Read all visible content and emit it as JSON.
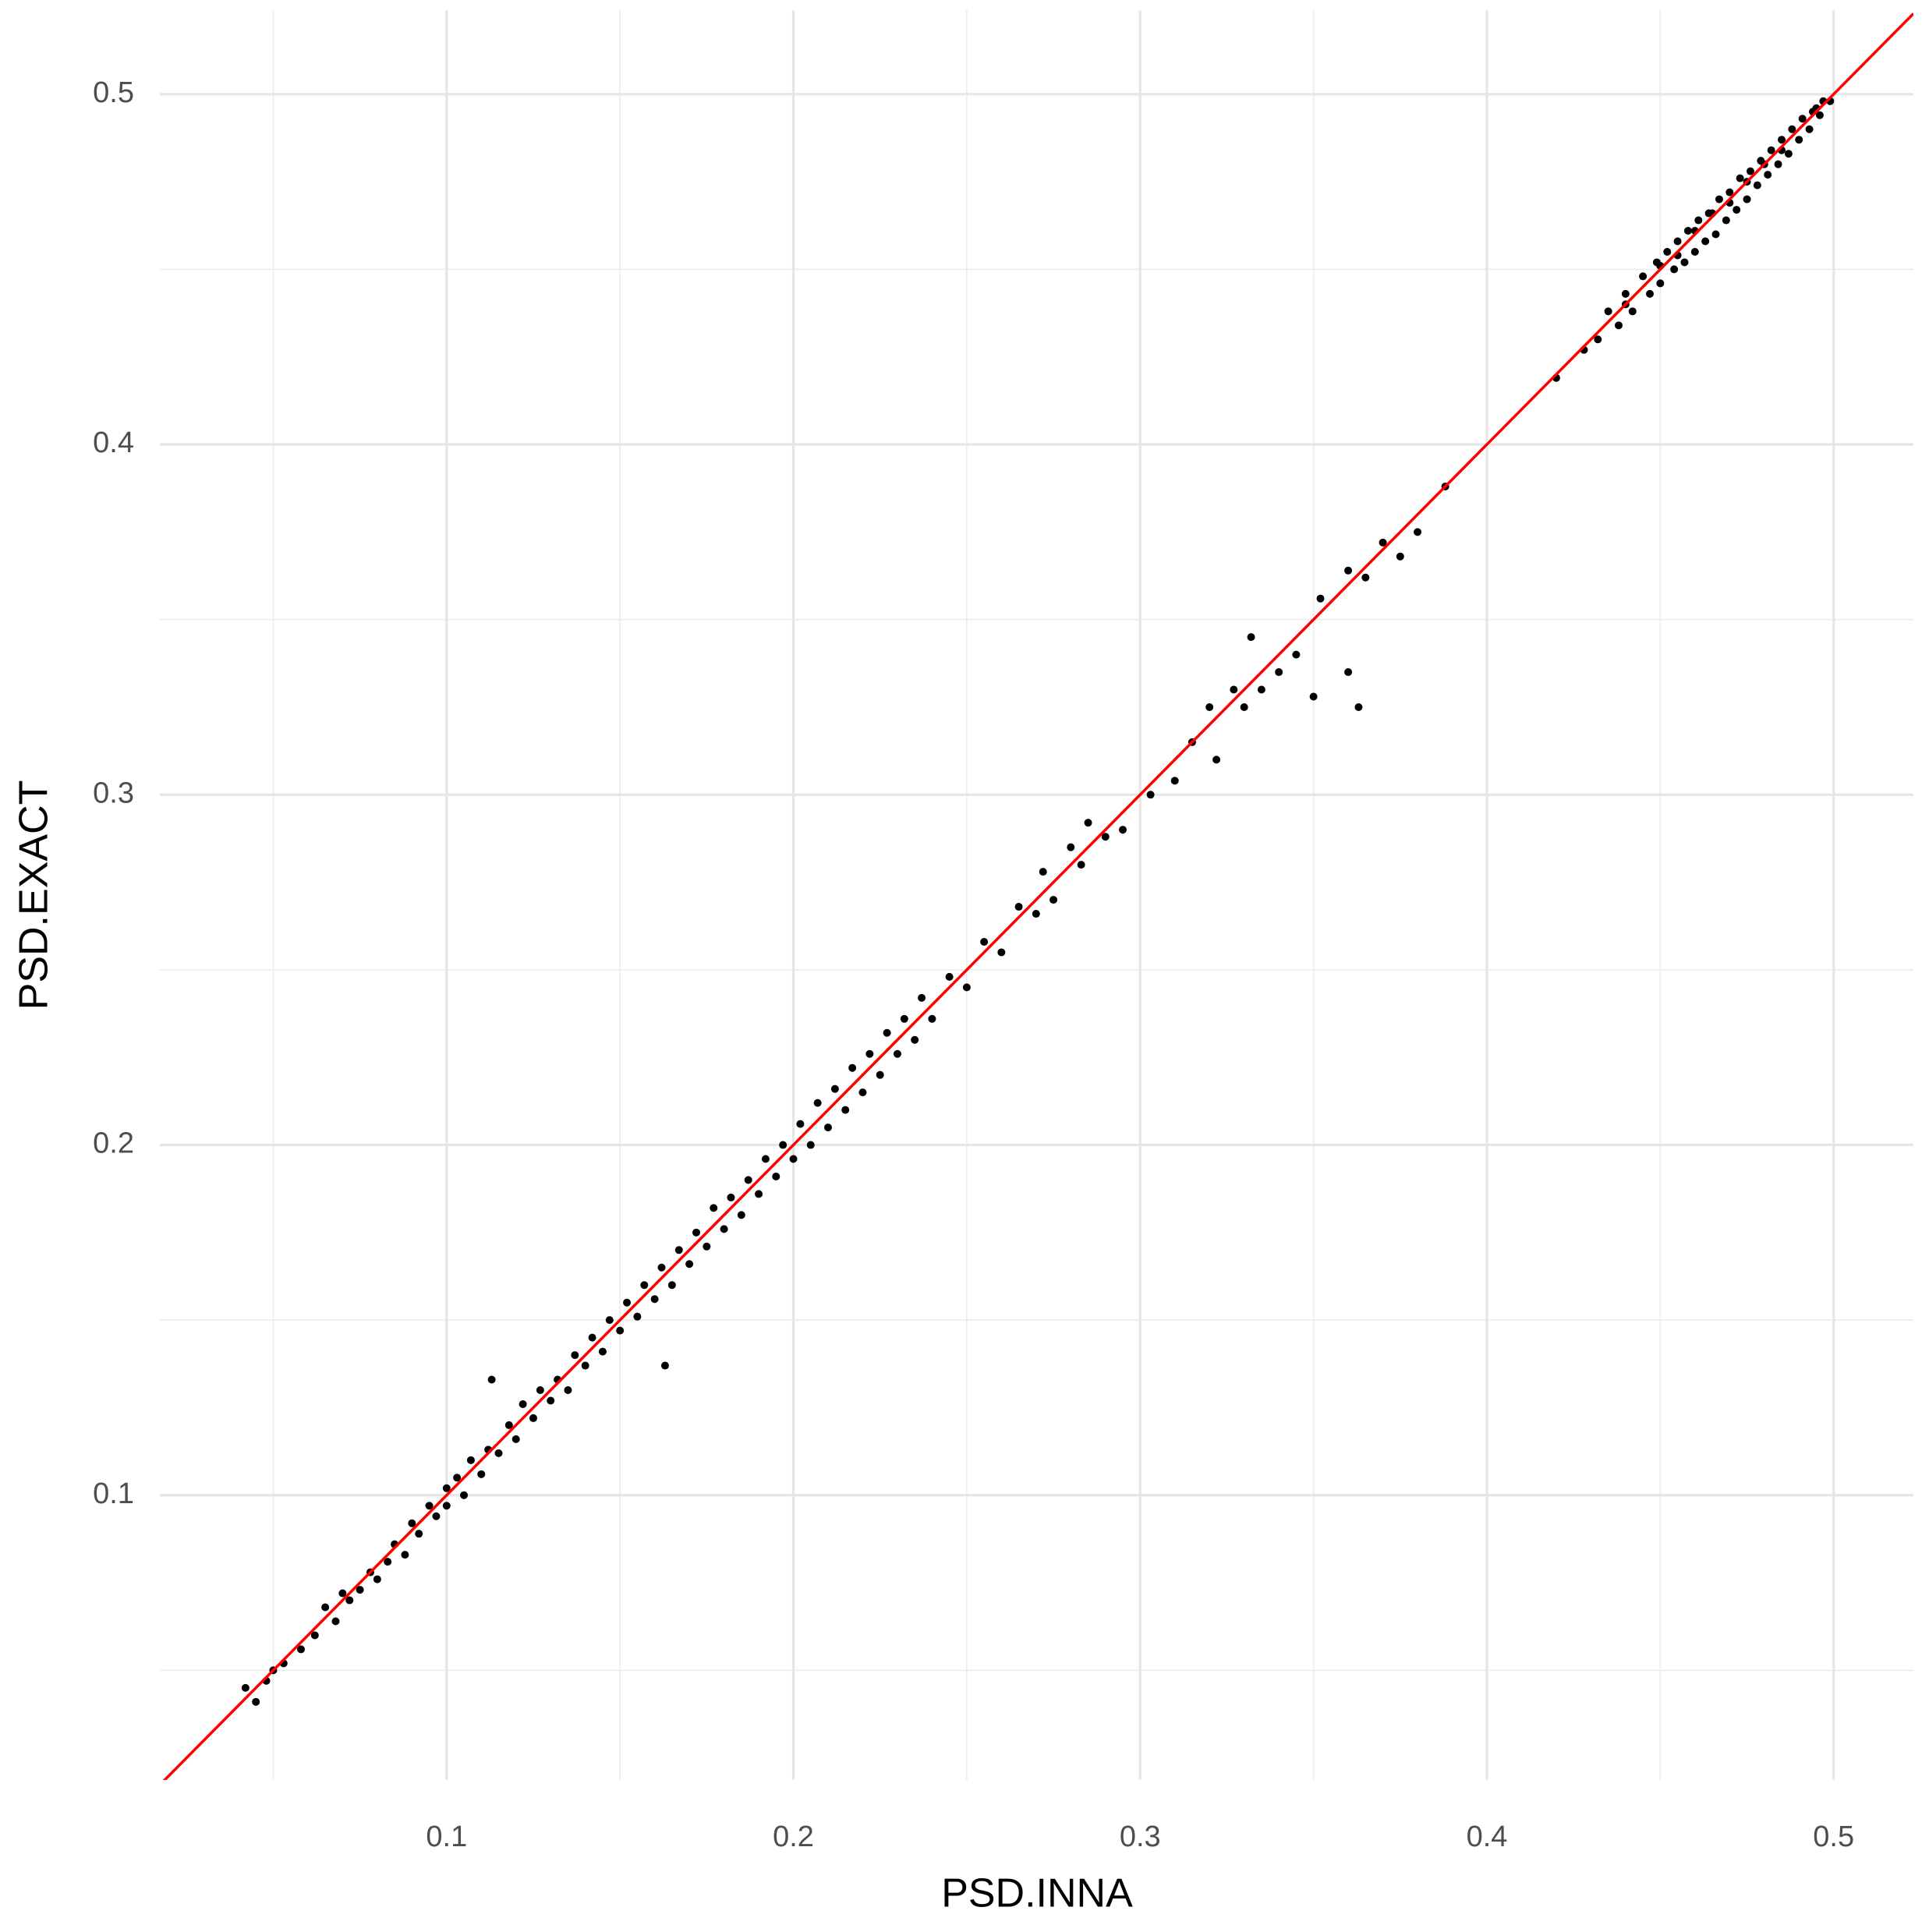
{
  "chart_data": {
    "type": "scatter",
    "x_label": "PSD.INNA",
    "y_label": "PSD.EXACT",
    "color": "#000000",
    "x": [
      0.042,
      0.045,
      0.048,
      0.05,
      0.053,
      0.058,
      0.062,
      0.065,
      0.068,
      0.07,
      0.072,
      0.075,
      0.078,
      0.08,
      0.083,
      0.085,
      0.088,
      0.09,
      0.092,
      0.095,
      0.097,
      0.1,
      0.1,
      0.103,
      0.105,
      0.107,
      0.11,
      0.112,
      0.113,
      0.115,
      0.118,
      0.12,
      0.122,
      0.125,
      0.127,
      0.13,
      0.132,
      0.135,
      0.137,
      0.14,
      0.142,
      0.145,
      0.147,
      0.15,
      0.152,
      0.155,
      0.157,
      0.16,
      0.162,
      0.163,
      0.165,
      0.167,
      0.17,
      0.172,
      0.175,
      0.177,
      0.18,
      0.182,
      0.185,
      0.187,
      0.19,
      0.192,
      0.195,
      0.197,
      0.2,
      0.202,
      0.205,
      0.207,
      0.21,
      0.212,
      0.215,
      0.217,
      0.22,
      0.222,
      0.225,
      0.227,
      0.23,
      0.232,
      0.235,
      0.237,
      0.24,
      0.245,
      0.25,
      0.255,
      0.26,
      0.265,
      0.27,
      0.272,
      0.275,
      0.28,
      0.283,
      0.285,
      0.29,
      0.295,
      0.303,
      0.31,
      0.315,
      0.32,
      0.322,
      0.327,
      0.33,
      0.332,
      0.335,
      0.34,
      0.345,
      0.35,
      0.36,
      0.363,
      0.352,
      0.36,
      0.365,
      0.37,
      0.375,
      0.38,
      0.388,
      0.42,
      0.428,
      0.432,
      0.435,
      0.438,
      0.44,
      0.442,
      0.445,
      0.447,
      0.449,
      0.45,
      0.452,
      0.454,
      0.455,
      0.457,
      0.458,
      0.46,
      0.461,
      0.463,
      0.464,
      0.466,
      0.467,
      0.469,
      0.47,
      0.472,
      0.473,
      0.475,
      0.476,
      0.478,
      0.479,
      0.481,
      0.482,
      0.484,
      0.485,
      0.487,
      0.488,
      0.49,
      0.491,
      0.493,
      0.494,
      0.496,
      0.497,
      0.499,
      0.45,
      0.46,
      0.47,
      0.48,
      0.44,
      0.455,
      0.465,
      0.475,
      0.485,
      0.495
    ],
    "values": [
      0.045,
      0.041,
      0.047,
      0.05,
      0.052,
      0.056,
      0.06,
      0.068,
      0.064,
      0.072,
      0.07,
      0.073,
      0.078,
      0.076,
      0.081,
      0.086,
      0.083,
      0.092,
      0.089,
      0.097,
      0.094,
      0.102,
      0.097,
      0.105,
      0.1,
      0.11,
      0.106,
      0.113,
      0.133,
      0.112,
      0.12,
      0.116,
      0.126,
      0.122,
      0.13,
      0.127,
      0.133,
      0.13,
      0.14,
      0.137,
      0.145,
      0.141,
      0.15,
      0.147,
      0.155,
      0.151,
      0.16,
      0.156,
      0.165,
      0.137,
      0.16,
      0.17,
      0.166,
      0.175,
      0.171,
      0.182,
      0.176,
      0.185,
      0.18,
      0.19,
      0.186,
      0.196,
      0.191,
      0.2,
      0.196,
      0.206,
      0.2,
      0.212,
      0.205,
      0.216,
      0.21,
      0.222,
      0.215,
      0.226,
      0.22,
      0.232,
      0.226,
      0.236,
      0.23,
      0.242,
      0.236,
      0.248,
      0.245,
      0.258,
      0.255,
      0.268,
      0.266,
      0.278,
      0.27,
      0.285,
      0.28,
      0.292,
      0.288,
      0.29,
      0.3,
      0.304,
      0.315,
      0.325,
      0.31,
      0.33,
      0.325,
      0.345,
      0.33,
      0.335,
      0.34,
      0.328,
      0.335,
      0.325,
      0.356,
      0.364,
      0.362,
      0.372,
      0.368,
      0.375,
      0.388,
      0.419,
      0.427,
      0.43,
      0.438,
      0.434,
      0.443,
      0.438,
      0.448,
      0.443,
      0.452,
      0.446,
      0.455,
      0.45,
      0.458,
      0.452,
      0.461,
      0.455,
      0.464,
      0.458,
      0.466,
      0.46,
      0.47,
      0.464,
      0.472,
      0.467,
      0.476,
      0.47,
      0.478,
      0.474,
      0.481,
      0.477,
      0.484,
      0.48,
      0.487,
      0.483,
      0.49,
      0.487,
      0.493,
      0.49,
      0.495,
      0.494,
      0.498,
      0.498,
      0.451,
      0.461,
      0.469,
      0.48,
      0.44,
      0.454,
      0.466,
      0.475,
      0.484,
      0.496
    ],
    "reference_line": {
      "slope": 1,
      "intercept": 0,
      "color": "#ff0000"
    },
    "xlim": [
      0.0173,
      0.523
    ],
    "ylim": [
      0.0187,
      0.524
    ],
    "xticks": [
      0.1,
      0.2,
      0.3,
      0.4,
      0.5
    ],
    "yticks": [
      0.1,
      0.2,
      0.3,
      0.4,
      0.5
    ],
    "xminor": [
      0.05,
      0.15,
      0.25,
      0.35,
      0.45
    ],
    "yminor": [
      0.05,
      0.15,
      0.25,
      0.35,
      0.45
    ],
    "grid": true
  }
}
